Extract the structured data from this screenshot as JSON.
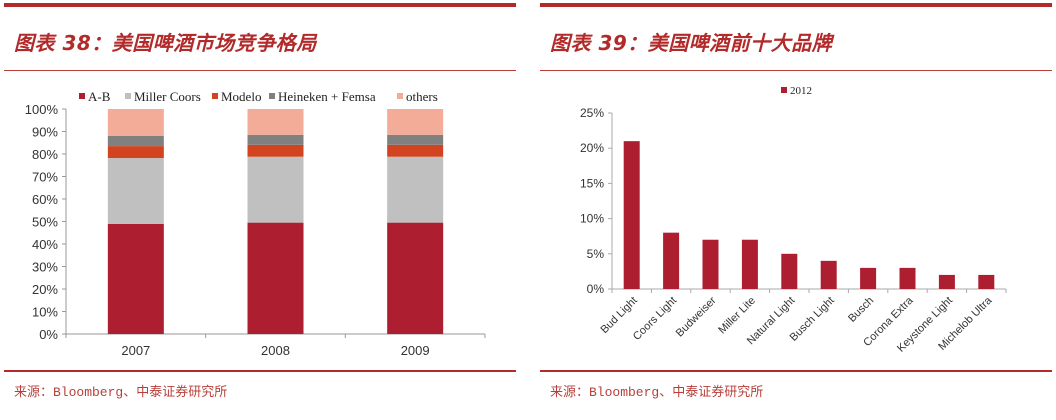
{
  "left": {
    "title": "图表 38：美国啤酒市场竞争格局",
    "source": "来源：Bloomberg、中泰证券研究所"
  },
  "right": {
    "title": "图表 39：美国啤酒前十大品牌",
    "source": "来源：Bloomberg、中泰证券研究所"
  },
  "chart_data": [
    {
      "type": "bar",
      "stacked": true,
      "title": "美国啤酒市场竞争格局",
      "categories": [
        "2007",
        "2008",
        "2009"
      ],
      "series": [
        {
          "name": "A-B",
          "color": "#ad1f30",
          "values": [
            48.9,
            49.5,
            49.5
          ]
        },
        {
          "name": "Miller Coors",
          "color": "#c0c0c0",
          "values": [
            29.3,
            29.3,
            29.3
          ]
        },
        {
          "name": "Modelo",
          "color": "#d2431f",
          "values": [
            5.3,
            5.3,
            5.3
          ]
        },
        {
          "name": "Heineken + Femsa",
          "color": "#808080",
          "values": [
            4.5,
            4.4,
            4.4
          ]
        },
        {
          "name": "others",
          "color": "#f2ac98",
          "values": [
            12.0,
            11.5,
            11.5
          ]
        }
      ],
      "yticks": [
        "0%",
        "10%",
        "20%",
        "30%",
        "40%",
        "50%",
        "60%",
        "70%",
        "80%",
        "90%",
        "100%"
      ],
      "ylim": [
        0,
        100
      ],
      "xlabel": "",
      "ylabel": "",
      "legend_position": "top",
      "grid": false
    },
    {
      "type": "bar",
      "title": "美国啤酒前十大品牌",
      "categories": [
        "Bud Light",
        "Coors Light",
        "Budweiser",
        "Miller Lite",
        "Natural Light",
        "Busch Light",
        "Busch",
        "Corona Extra",
        "Keystone Light",
        "Michelob Ultra"
      ],
      "series": [
        {
          "name": "2012",
          "color": "#ad1f30",
          "values": [
            21,
            8,
            7,
            7,
            5,
            4,
            3,
            3,
            2,
            2
          ]
        }
      ],
      "yticks": [
        "0%",
        "5%",
        "10%",
        "15%",
        "20%",
        "25%"
      ],
      "ylim": [
        0,
        25
      ],
      "xlabel": "",
      "ylabel": "",
      "legend_position": "top",
      "grid": false
    }
  ]
}
